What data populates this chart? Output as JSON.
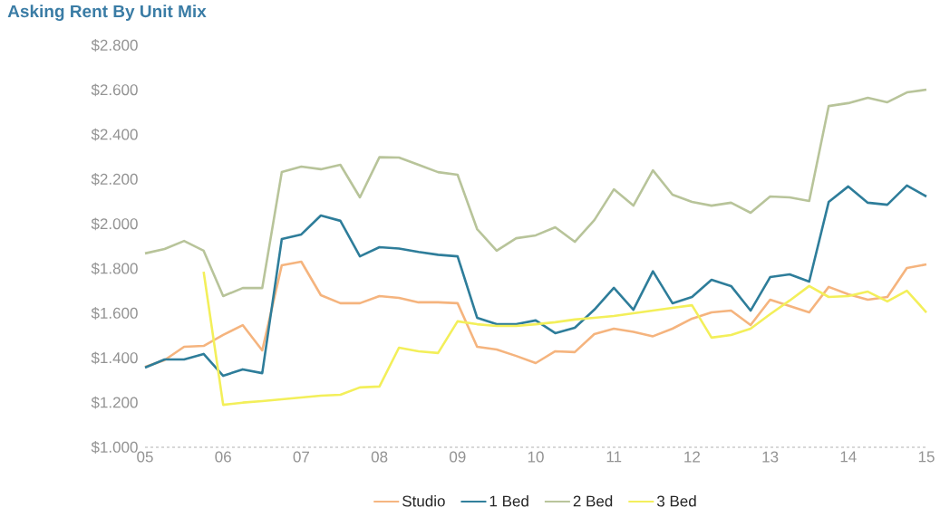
{
  "chart_data": {
    "type": "line",
    "title": "Asking Rent By Unit Mix",
    "x": [
      2005,
      2005.25,
      2005.5,
      2005.75,
      2006,
      2006.25,
      2006.5,
      2006.75,
      2007,
      2007.25,
      2007.5,
      2007.75,
      2008,
      2008.25,
      2008.5,
      2008.75,
      2009,
      2009.25,
      2009.5,
      2009.75,
      2010,
      2010.25,
      2010.5,
      2010.75,
      2011,
      2011.25,
      2011.5,
      2011.75,
      2012,
      2012.25,
      2012.5,
      2012.75,
      2013,
      2013.25,
      2013.5,
      2013.75,
      2014,
      2014.25,
      2014.5,
      2014.75,
      2015
    ],
    "series": [
      {
        "name": "Studio",
        "color": "#f5b47e",
        "values": [
          1360,
          1390,
          1450,
          1454,
          1503,
          1547,
          1434,
          1815,
          1831,
          1681,
          1645,
          1645,
          1677,
          1669,
          1649,
          1649,
          1645,
          1450,
          1438,
          1409,
          1377,
          1430,
          1426,
          1507,
          1531,
          1517,
          1497,
          1531,
          1576,
          1604,
          1612,
          1547,
          1661,
          1632,
          1604,
          1718,
          1685,
          1661,
          1673,
          1803,
          1819
        ]
      },
      {
        "name": "1 Bed",
        "color": "#2e7d9a",
        "values": [
          1357,
          1393,
          1393,
          1418,
          1320,
          1349,
          1332,
          1932,
          1953,
          2038,
          2014,
          1855,
          1896,
          1890,
          1875,
          1862,
          1855,
          1580,
          1551,
          1551,
          1568,
          1511,
          1535,
          1616,
          1714,
          1616,
          1788,
          1645,
          1673,
          1750,
          1722,
          1612,
          1762,
          1774,
          1742,
          2099,
          2168,
          2095,
          2086,
          2172,
          2123
        ]
      },
      {
        "name": "2 Bed",
        "color": "#b8c49a",
        "values": [
          1868,
          1888,
          1924,
          1880,
          1677,
          1713,
          1713,
          2232,
          2257,
          2245,
          2265,
          2119,
          2299,
          2297,
          2265,
          2232,
          2220,
          1977,
          1880,
          1936,
          1949,
          1985,
          1920,
          2017,
          2155,
          2082,
          2240,
          2131,
          2099,
          2082,
          2095,
          2050,
          2123,
          2119,
          2103,
          2528,
          2541,
          2565,
          2545,
          2589,
          2601
        ]
      },
      {
        "name": "3 Bed",
        "color": "#f3ef5a",
        "values": [
          null,
          null,
          null,
          1786,
          1190,
          1200,
          1207,
          1215,
          1223,
          1231,
          1235,
          1268,
          1272,
          1446,
          1430,
          1422,
          1564,
          1551,
          1543,
          1543,
          1551,
          1560,
          1572,
          1580,
          1588,
          1600,
          1612,
          1624,
          1636,
          1491,
          1503,
          1531,
          1596,
          1657,
          1722,
          1673,
          1677,
          1697,
          1653,
          1701,
          1604
        ]
      }
    ],
    "xlim": [
      2005,
      2015
    ],
    "xticks": [
      {
        "value": 2005,
        "label": "05"
      },
      {
        "value": 2006,
        "label": "06"
      },
      {
        "value": 2007,
        "label": "07"
      },
      {
        "value": 2008,
        "label": "08"
      },
      {
        "value": 2009,
        "label": "09"
      },
      {
        "value": 2010,
        "label": "10"
      },
      {
        "value": 2011,
        "label": "11"
      },
      {
        "value": 2012,
        "label": "12"
      },
      {
        "value": 2013,
        "label": "13"
      },
      {
        "value": 2014,
        "label": "14"
      },
      {
        "value": 2015,
        "label": "15"
      }
    ],
    "ylim": [
      1000,
      2800
    ],
    "yticks": [
      {
        "value": 1000,
        "label": "$1.000"
      },
      {
        "value": 1200,
        "label": "$1.200"
      },
      {
        "value": 1400,
        "label": "$1.400"
      },
      {
        "value": 1600,
        "label": "$1.600"
      },
      {
        "value": 1800,
        "label": "$1.800"
      },
      {
        "value": 2000,
        "label": "$2.000"
      },
      {
        "value": 2200,
        "label": "$2.200"
      },
      {
        "value": 2400,
        "label": "$2.400"
      },
      {
        "value": 2600,
        "label": "$2.600"
      },
      {
        "value": 2800,
        "label": "$2.800"
      }
    ],
    "legend": "bottom",
    "marker": "none"
  }
}
